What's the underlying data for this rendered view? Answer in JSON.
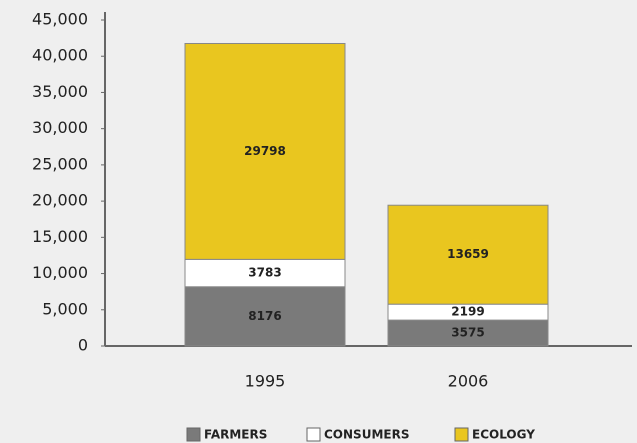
{
  "chart_data": {
    "type": "stacked_bar",
    "categories": [
      "1995",
      "2006"
    ],
    "series": [
      {
        "name": "FARMERS",
        "color": "#7a7a7a",
        "values": [
          8176,
          3575
        ]
      },
      {
        "name": "CONSUMERS",
        "color": "#ffffff",
        "values": [
          3783,
          2199
        ]
      },
      {
        "name": "ECOLOGY",
        "color": "#e9c61f",
        "values": [
          29798,
          13659
        ]
      }
    ],
    "ylim": [
      0,
      45000
    ],
    "yticks": [
      0,
      {
        "value": 5000,
        "label": "5,000"
      },
      {
        "value": 10000,
        "label": "10,000"
      },
      {
        "value": 15000,
        "label": "15,000"
      },
      {
        "value": 20000,
        "label": "20,000"
      },
      {
        "value": 25000,
        "label": "25,000"
      },
      {
        "value": 30000,
        "label": "30,000"
      },
      {
        "value": 35000,
        "label": "35,000"
      },
      {
        "value": 40000,
        "label": "40,000"
      },
      {
        "value": 45000,
        "label": "45,000"
      }
    ],
    "legend": "bottom"
  }
}
